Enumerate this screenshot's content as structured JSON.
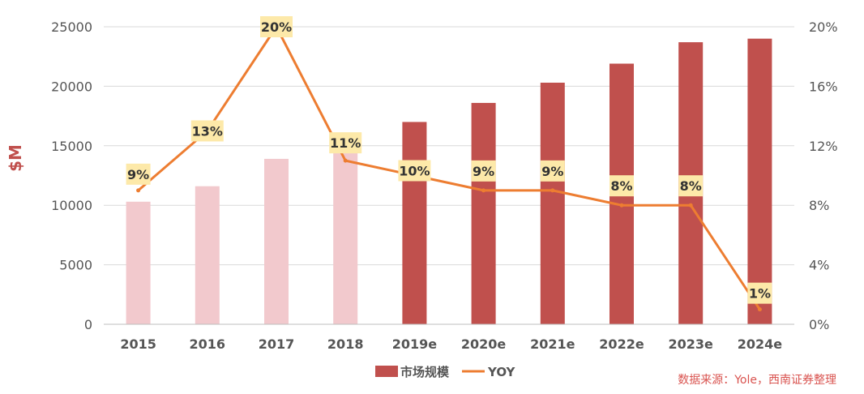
{
  "chart_data": {
    "type": "bar+line",
    "categories": [
      "2015",
      "2016",
      "2017",
      "2018",
      "2019e",
      "2020e",
      "2021e",
      "2022e",
      "2023e",
      "2024e"
    ],
    "series": [
      {
        "name": "市场规模",
        "type": "bar",
        "axis": "left",
        "values": [
          10300,
          11600,
          13900,
          15000,
          17000,
          18600,
          20300,
          21900,
          23700,
          24000
        ],
        "colors": [
          "#f2c9cd",
          "#f2c9cd",
          "#f2c9cd",
          "#f2c9cd",
          "#c0504d",
          "#c0504d",
          "#c0504d",
          "#c0504d",
          "#c0504d",
          "#c0504d"
        ]
      },
      {
        "name": "YOY",
        "type": "line",
        "axis": "right",
        "values": [
          9,
          13,
          20,
          11,
          10,
          9,
          9,
          8,
          8,
          1
        ],
        "labels": [
          "9%",
          "13%",
          "20%",
          "11%",
          "10%",
          "9%",
          "9%",
          "8%",
          "8%",
          "1%"
        ],
        "color": "#ed7d31"
      }
    ],
    "ylabel": "$M",
    "ylim": [
      0,
      25000
    ],
    "yticks": [
      "0",
      "5000",
      "10000",
      "15000",
      "20000",
      "25000"
    ],
    "y2lim": [
      0,
      20
    ],
    "y2ticks": [
      "0%",
      "4%",
      "8%",
      "12%",
      "16%",
      "20%"
    ],
    "grid": true,
    "legend_position": "bottom",
    "label_box_color": "#fde9a9",
    "source": "数据来源：Yole，西南证券整理"
  }
}
